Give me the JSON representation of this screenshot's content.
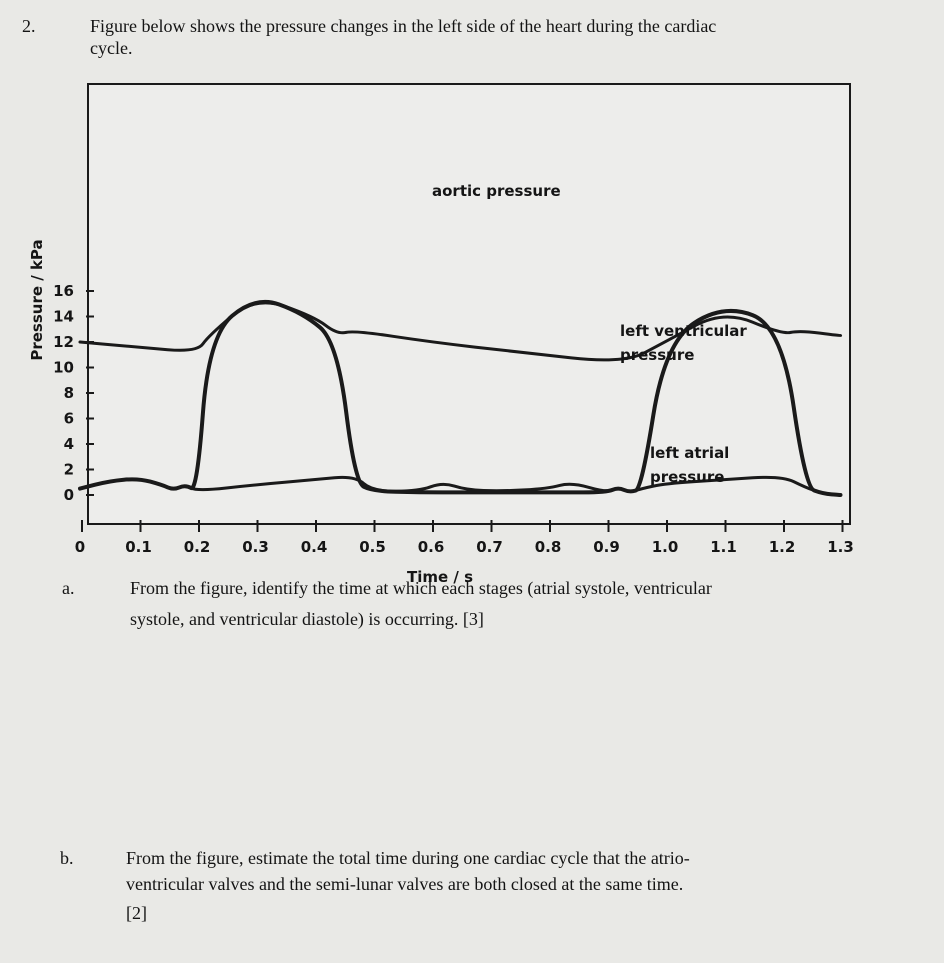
{
  "question": {
    "number": "2.",
    "intro_line1": "Figure below shows the pressure changes in the left side of the heart during the cardiac",
    "intro_line2": "cycle."
  },
  "part_a": {
    "label": "a.",
    "line1": "From the figure, identify the time at which each stages (atrial systole, ventricular",
    "line2": "systole, and ventricular diastole) is occurring. [3]"
  },
  "part_b": {
    "label": "b.",
    "line1": "From the figure, estimate the total time during one cardiac cycle that the atrio-",
    "line2": "ventricular valves and the semi-lunar valves are both closed at the same time.",
    "line3": "[2]"
  },
  "chart_data": {
    "type": "line",
    "xlabel": "Time / s",
    "ylabel": "Pressure / kPa",
    "xlim": [
      0,
      1.3
    ],
    "ylim": [
      -1,
      16
    ],
    "x_ticks": [
      "0",
      "0.1",
      "0.2",
      "0.3",
      "0.4",
      "0.5",
      "0.6",
      "0.7",
      "0.8",
      "0.9",
      "1.0",
      "1.1",
      "1.2",
      "1.3"
    ],
    "y_ticks": [
      "0",
      "2",
      "4",
      "6",
      "8",
      "10",
      "12",
      "14",
      "16"
    ],
    "series": [
      {
        "name": "aortic pressure",
        "x": [
          0.0,
          0.1,
          0.2,
          0.22,
          0.3,
          0.4,
          0.44,
          0.47,
          0.6,
          0.75,
          0.93,
          1.0,
          1.1,
          1.2,
          1.23,
          1.3
        ],
        "y": [
          12.0,
          11.6,
          11.2,
          12.5,
          15.6,
          14.0,
          12.6,
          12.9,
          12.0,
          11.2,
          10.3,
          12.0,
          14.5,
          12.6,
          12.9,
          12.5
        ]
      },
      {
        "name": "left ventricular pressure",
        "x": [
          0.0,
          0.05,
          0.1,
          0.14,
          0.16,
          0.18,
          0.2,
          0.22,
          0.3,
          0.38,
          0.44,
          0.47,
          0.5,
          0.58,
          0.66,
          0.74,
          0.82,
          0.9,
          0.92,
          0.94,
          0.96,
          1.0,
          1.1,
          1.2,
          1.24,
          1.27,
          1.3
        ],
        "y": [
          0.5,
          1.1,
          1.3,
          0.8,
          0.4,
          0.8,
          0.3,
          12.5,
          15.6,
          14.3,
          12.0,
          1.0,
          0.3,
          0.2,
          0.2,
          0.2,
          0.2,
          0.2,
          0.6,
          0.2,
          0.5,
          12.0,
          15.0,
          13.2,
          0.6,
          0.1,
          0.0
        ]
      },
      {
        "name": "left atrial pressure",
        "x": [
          0.0,
          0.05,
          0.1,
          0.14,
          0.16,
          0.18,
          0.2,
          0.3,
          0.4,
          0.47,
          0.5,
          0.58,
          0.62,
          0.66,
          0.72,
          0.8,
          0.84,
          0.9,
          0.92,
          0.94,
          0.96,
          1.0,
          1.1,
          1.2,
          1.24,
          1.27,
          1.3
        ],
        "y": [
          0.5,
          1.1,
          1.3,
          0.8,
          0.4,
          0.8,
          0.3,
          0.8,
          1.2,
          1.5,
          0.3,
          0.3,
          1.0,
          0.4,
          0.3,
          0.5,
          1.0,
          0.2,
          0.6,
          0.2,
          0.5,
          0.9,
          1.2,
          1.5,
          0.6,
          0.1,
          0.0
        ]
      }
    ],
    "annotations": [
      "aortic pressure",
      "left ventricular",
      "pressure",
      "left atrial",
      "pressure"
    ],
    "grid": false,
    "colors": {
      "line": "#1a1a1a",
      "background": "#ececea",
      "frame": "#1a1a1a"
    }
  }
}
